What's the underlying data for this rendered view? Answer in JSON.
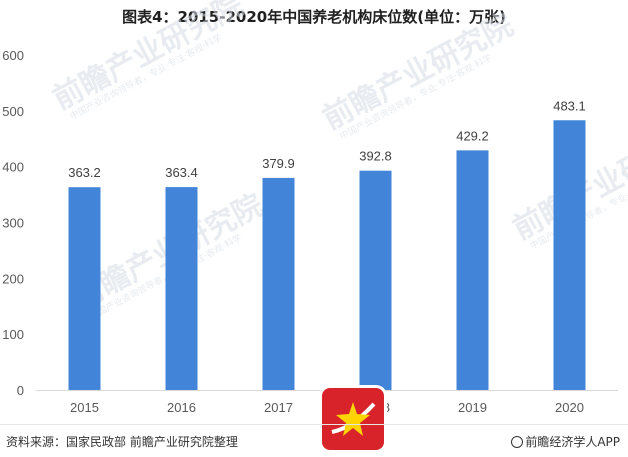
{
  "footer": {
    "source": "资料来源：国家民政部 前瞻产业研究院整理",
    "brand": "前瞻经济学人APP"
  },
  "watermark": {
    "text": "前瞻产业研究院",
    "subtext": "中国产业咨询领导者，专业·专注·客观·科学"
  },
  "logo": {
    "icon": "star-logo-icon",
    "colors": {
      "background": "#d8232a",
      "star": "#ffd400"
    }
  },
  "chart_data": {
    "type": "bar",
    "title": "图表4：2015-2020年中国养老机构床位数(单位：万张)",
    "categories": [
      "2015",
      "2016",
      "2017",
      "2018",
      "2019",
      "2020"
    ],
    "values": [
      363.2,
      363.4,
      379.9,
      392.8,
      429.2,
      483.1
    ],
    "value_labels": [
      "363.2",
      "363.4",
      "379.9",
      "392.8",
      "429.2",
      "483.1"
    ],
    "yticks": [
      "0",
      "100",
      "200",
      "300",
      "400",
      "500",
      "600"
    ],
    "ylim": [
      0,
      600
    ],
    "grid": false,
    "legend": "none",
    "colors": {
      "bar": "#4285d8"
    }
  }
}
